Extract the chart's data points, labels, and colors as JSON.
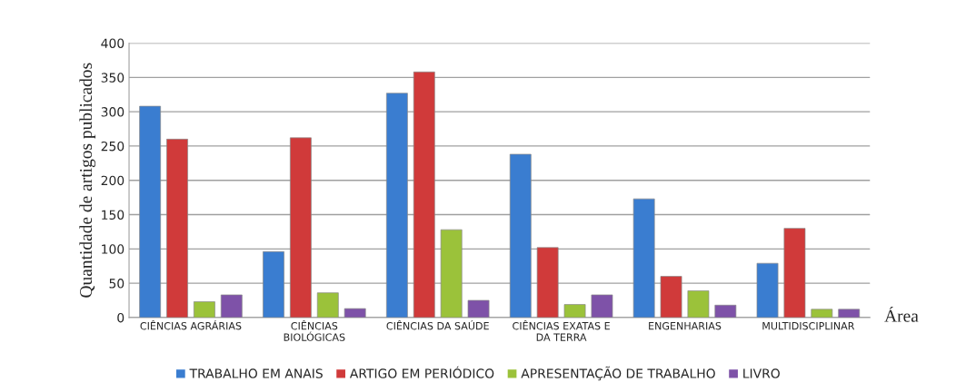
{
  "chart_data": {
    "type": "bar",
    "ylabel": "Quantidade de artigos publicados",
    "xlabel": "Área",
    "categories": [
      "CIÊNCIAS AGRÁRIAS",
      "CIÊNCIAS\nBIOLÓGICAS",
      "CIÊNCIAS DA SAÚDE",
      "CIÊNCIAS EXATAS E\nDA TERRA",
      "ENGENHARIAS",
      "MULTIDISCIPLINAR"
    ],
    "series": [
      {
        "name": "TRABALHO EM ANAIS",
        "color": "#3a7dd0",
        "values": [
          308,
          96,
          327,
          238,
          173,
          79
        ]
      },
      {
        "name": "ARTIGO EM PERIÓDICO",
        "color": "#d03a3a",
        "values": [
          260,
          262,
          358,
          102,
          60,
          130
        ]
      },
      {
        "name": "APRESENTAÇÃO DE TRABALHO",
        "color": "#9bc23a",
        "values": [
          23,
          36,
          128,
          19,
          39,
          12
        ]
      },
      {
        "name": "LIVRO",
        "color": "#7e52a8",
        "values": [
          33,
          13,
          25,
          33,
          18,
          12
        ]
      }
    ],
    "ylim": [
      0,
      400
    ],
    "yticks": [
      0,
      50,
      100,
      150,
      200,
      250,
      300,
      350,
      400
    ],
    "grid": "y",
    "legend": "bottom"
  }
}
